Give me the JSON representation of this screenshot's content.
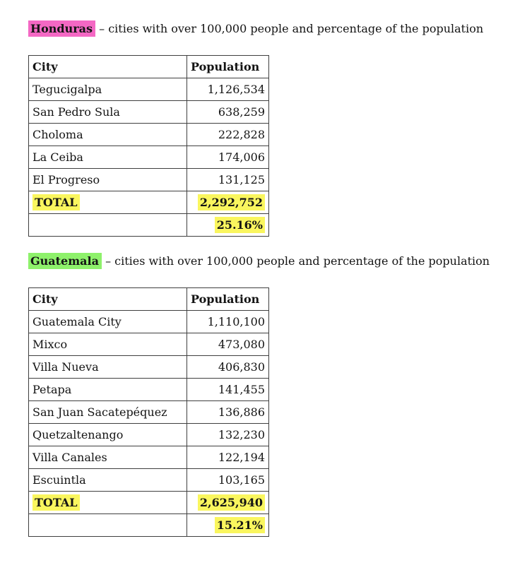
{
  "document": {
    "background": "#ffffff",
    "text_color": "#141414"
  },
  "colors": {
    "highlight_pink": "#f468c4",
    "highlight_green": "#8ef16b",
    "highlight_yellow": "#faf65e",
    "table_border": "#3f3f3f"
  },
  "sections": [
    {
      "country": "Honduras",
      "heading_suffix": " – cities with over 100,000 people and percentage of the population",
      "table": {
        "headers": [
          "City",
          "Population"
        ],
        "rows": [
          [
            "Tegucigalpa",
            "1,126,534"
          ],
          [
            "San Pedro Sula",
            "638,259"
          ],
          [
            "Choloma",
            "222,828"
          ],
          [
            "La Ceiba",
            "174,006"
          ],
          [
            "El Progreso",
            "131,125"
          ]
        ],
        "total_label": "TOTAL",
        "total_value": "2,292,752",
        "percent": "25.16%"
      }
    },
    {
      "country": "Guatemala",
      "heading_suffix": " – cities with over 100,000 people and percentage of the population",
      "table": {
        "headers": [
          "City",
          "Population"
        ],
        "rows": [
          [
            "Guatemala City",
            "1,110,100"
          ],
          [
            "Mixco",
            "473,080"
          ],
          [
            "Villa Nueva",
            "406,830"
          ],
          [
            "Petapa",
            "141,455"
          ],
          [
            "San Juan Sacatepéquez",
            "136,886"
          ],
          [
            "Quetzaltenango",
            "132,230"
          ],
          [
            "Villa Canales",
            "122,194"
          ],
          [
            "Escuintla",
            "103,165"
          ]
        ],
        "total_label": "TOTAL",
        "total_value": "2,625,940",
        "percent": "15.21%"
      }
    }
  ]
}
